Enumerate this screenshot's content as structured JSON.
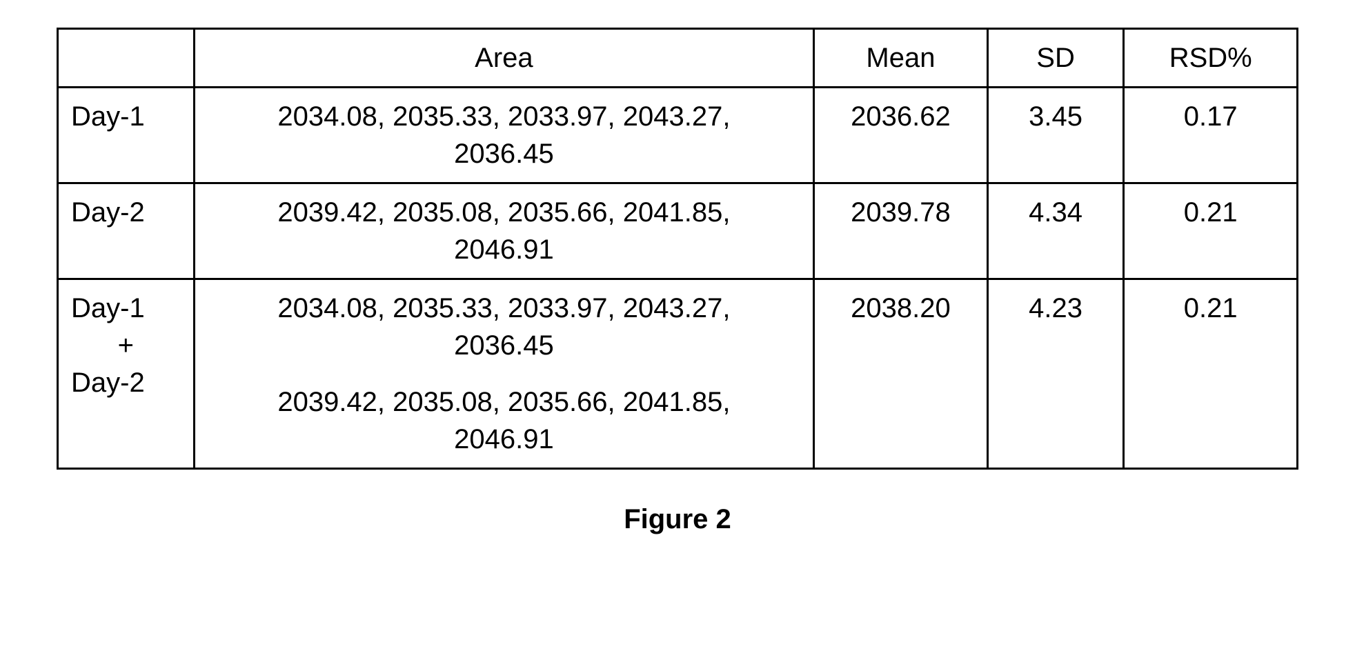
{
  "caption": "Figure 2",
  "table": {
    "headers": {
      "label": "",
      "area": "Area",
      "mean": "Mean",
      "sd": "SD",
      "rsd": "RSD%"
    },
    "colWidths": {
      "label": "11%",
      "area": "50%",
      "mean": "14%",
      "sd": "11%",
      "rsd": "14%"
    },
    "borderColor": "#000000",
    "borderWidth": 3,
    "fontSize": 40,
    "background": "#ffffff",
    "textColor": "#000000",
    "rows": [
      {
        "label": "Day-1",
        "areaGroups": [
          [
            2034.08,
            2035.33,
            2033.97,
            2043.27,
            2036.45
          ]
        ],
        "mean": 2036.62,
        "sd": 3.45,
        "rsd": 0.17
      },
      {
        "label": "Day-2",
        "areaGroups": [
          [
            2039.42,
            2035.08,
            2035.66,
            2041.85,
            2046.91
          ]
        ],
        "mean": 2039.78,
        "sd": 4.34,
        "rsd": 0.21
      },
      {
        "label": "Day-1\n+\nDay-2",
        "areaGroups": [
          [
            2034.08,
            2035.33,
            2033.97,
            2043.27,
            2036.45
          ],
          [
            2039.42,
            2035.08,
            2035.66,
            2041.85,
            2046.91
          ]
        ],
        "mean": 2038.2,
        "sd": 4.23,
        "rsd": 0.21
      }
    ]
  }
}
